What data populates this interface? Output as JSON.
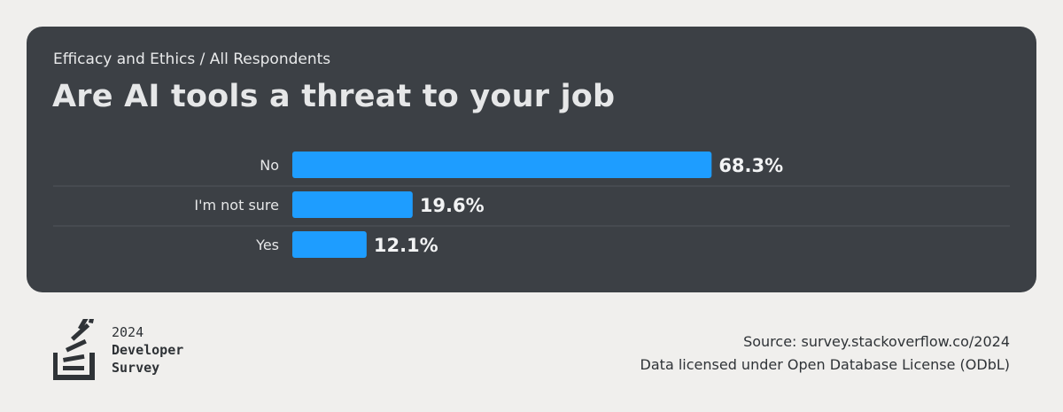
{
  "header": {
    "subtitle": "Efficacy and Ethics / All Respondents",
    "title": "Are AI tools a threat to your job"
  },
  "colors": {
    "bar": "#1e9dff",
    "card": "#3c4045",
    "page": "#f0efed",
    "text_light": "#e6e7e8",
    "text_dark": "#2f3337"
  },
  "chart_data": {
    "type": "bar",
    "orientation": "horizontal",
    "categories": [
      "No",
      "I'm not sure",
      "Yes"
    ],
    "values": [
      68.3,
      19.6,
      12.1
    ],
    "value_labels": [
      "68.3%",
      "19.6%",
      "12.1%"
    ],
    "unit": "%",
    "xlim": [
      0,
      100
    ],
    "grid": false,
    "legend": "none",
    "title": "Are AI tools a threat to your job",
    "subtitle": "Efficacy and Ethics / All Respondents"
  },
  "footer": {
    "logo_icon": "stack-overflow-logo-icon",
    "logo_year": "2024",
    "logo_line1": "Developer",
    "logo_line2": "Survey",
    "source": "Source: survey.stackoverflow.co/2024",
    "license": "Data licensed under Open Database License (ODbL)"
  }
}
